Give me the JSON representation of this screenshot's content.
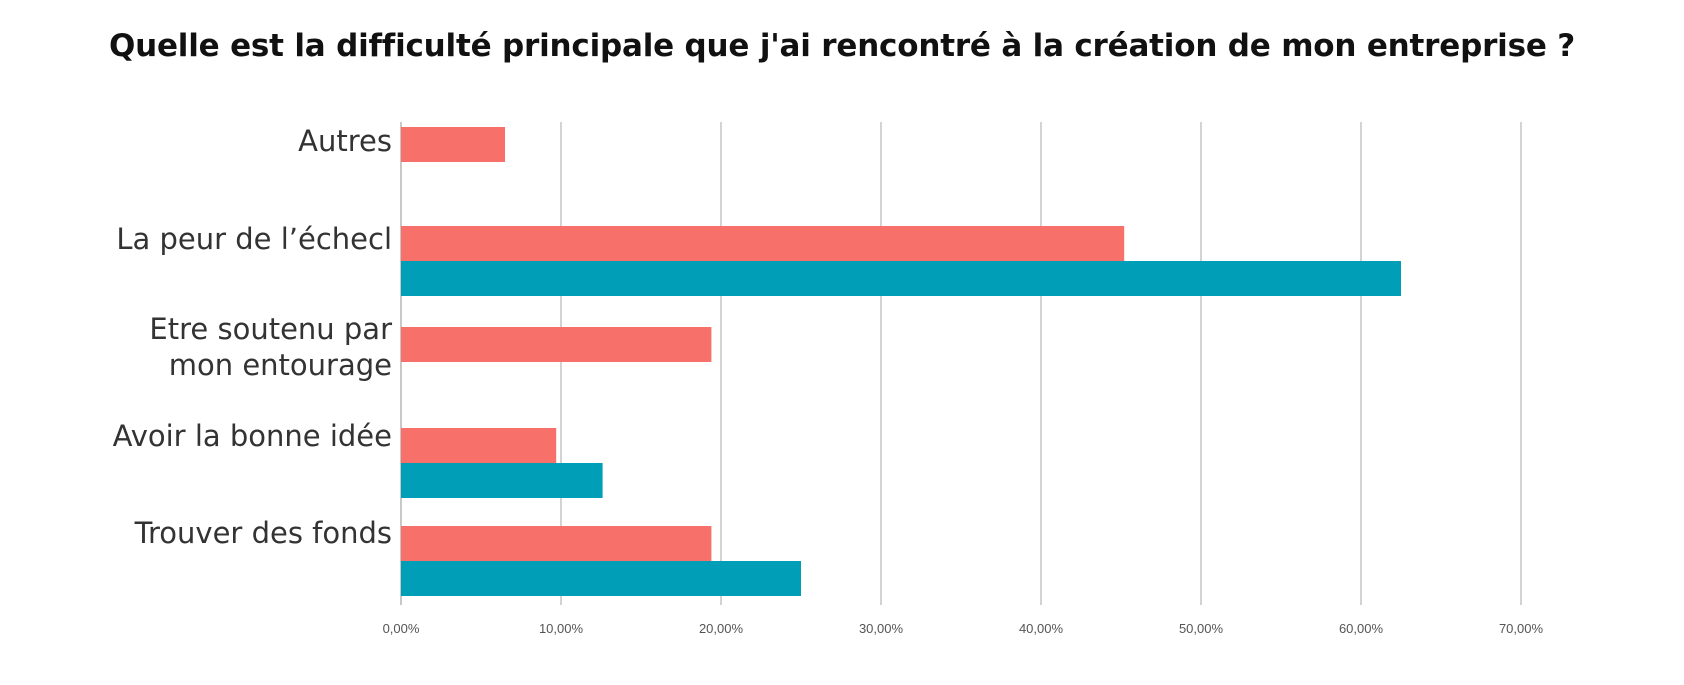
{
  "chart_data": {
    "type": "bar",
    "orientation": "horizontal",
    "title": "Quelle est la difficulté principale que j'ai rencontré à la création de mon entreprise ?",
    "categories": [
      [
        "Autres"
      ],
      [
        "La peur de l’échecl"
      ],
      [
        "Etre soutenu par",
        "mon entourage"
      ],
      [
        "Avoir la bonne idée"
      ],
      [
        "Trouver des fonds"
      ]
    ],
    "series": [
      {
        "color": "#f8706a",
        "values": [
          6.5,
          45.2,
          19.4,
          9.7,
          19.4
        ]
      },
      {
        "color": "#009fb7",
        "values": [
          null,
          62.5,
          null,
          12.6,
          25.0
        ]
      }
    ],
    "xlim": [
      0,
      70
    ],
    "xticks": [
      "0,00%",
      "10,00%",
      "20,00%",
      "30,00%",
      "40,00%",
      "50,00%",
      "60,00%",
      "70,00%"
    ],
    "grid": true,
    "legend": "none",
    "gridline_color": "#d3d3d3",
    "axis_color": "#c8c8c8"
  }
}
